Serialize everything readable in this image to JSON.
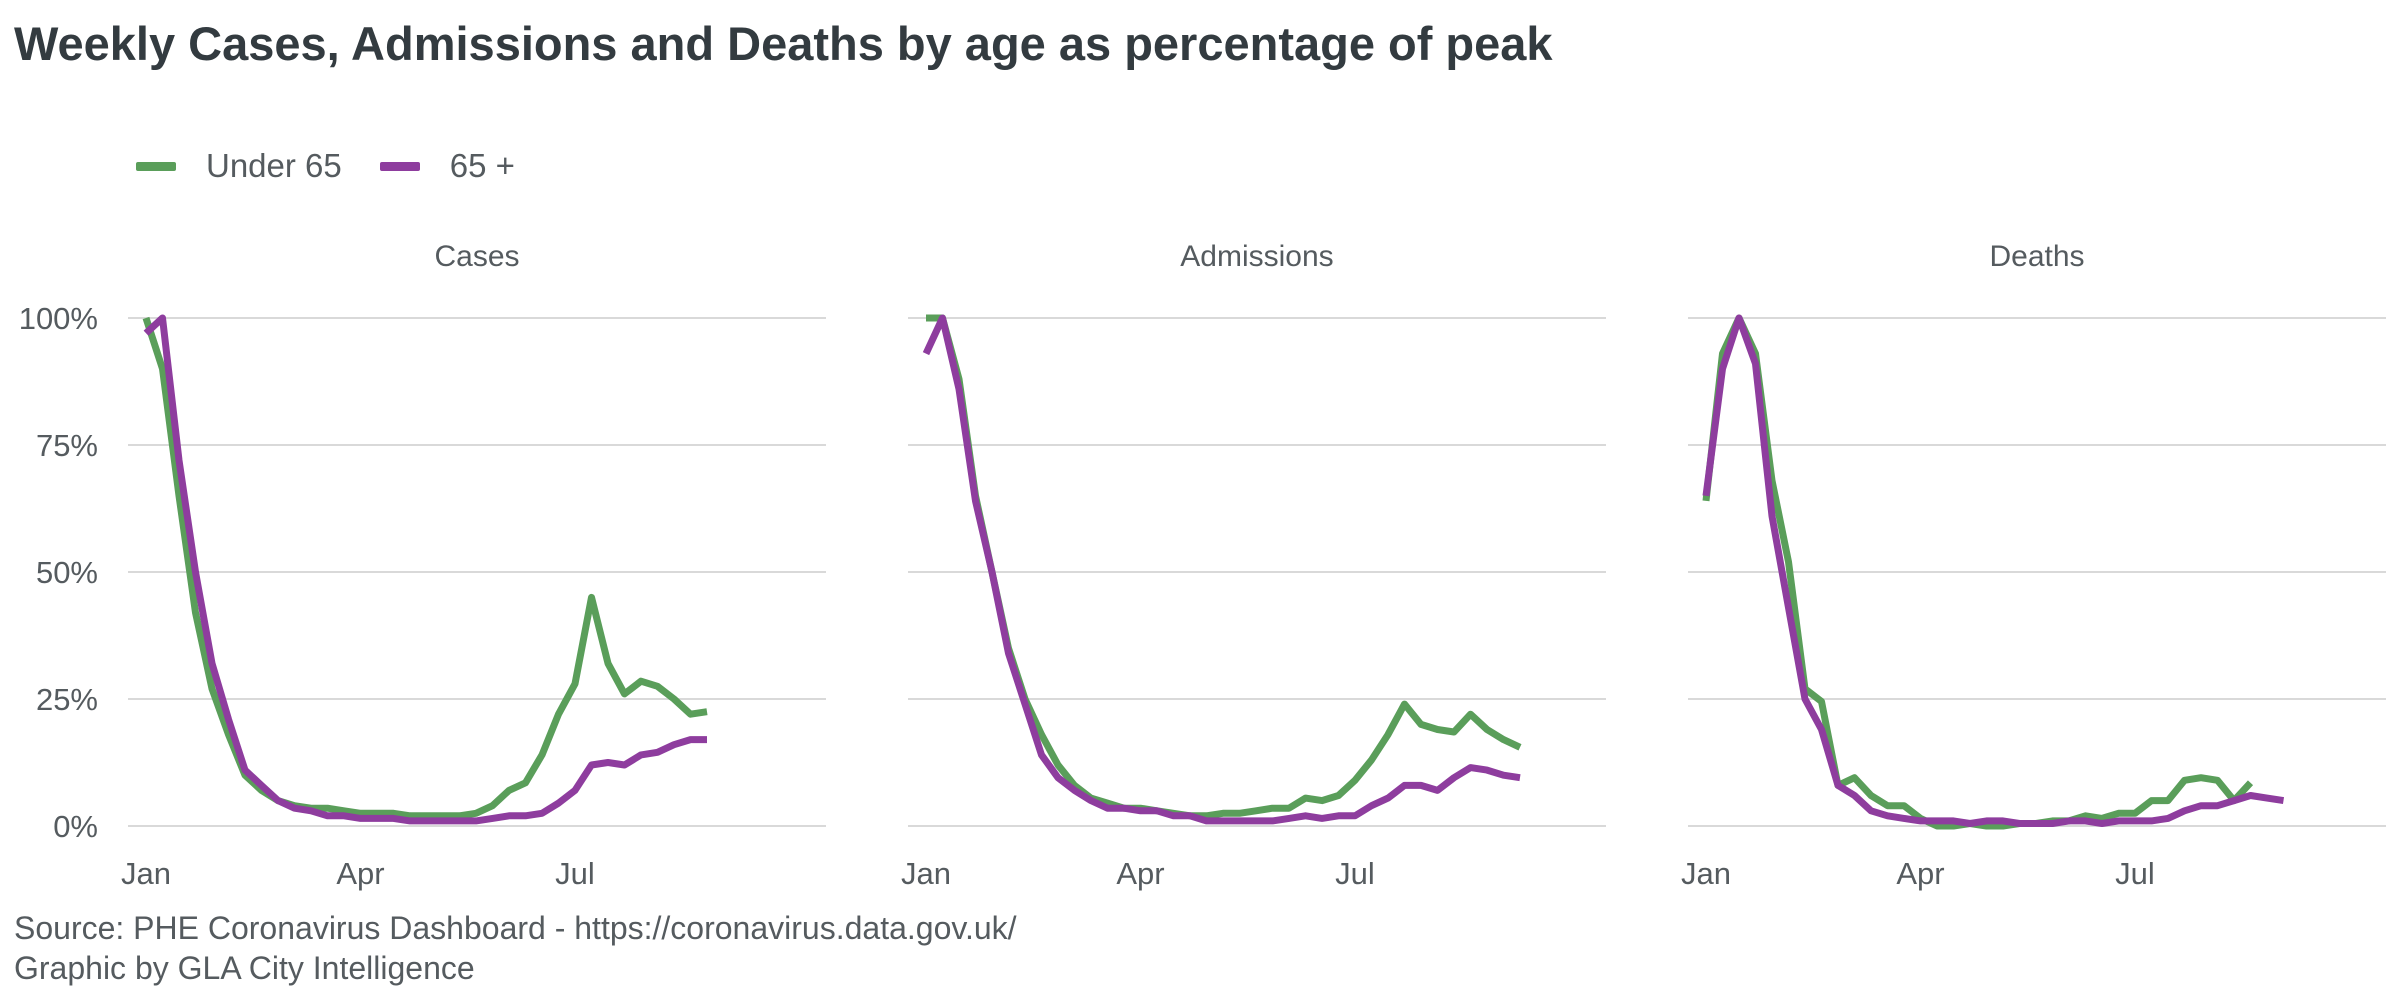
{
  "title": "Weekly Cases, Admissions and Deaths by age as percentage of peak",
  "legend": [
    {
      "name": "Under 65",
      "color": "#5a9e5a"
    },
    {
      "name": "65 +",
      "color": "#8e3d9e"
    }
  ],
  "source": {
    "line1": "Source: PHE Coronavirus Dashboard - https://coronavirus.data.gov.uk/",
    "line2": "Graphic by GLA City Intelligence"
  },
  "chart_data": [
    {
      "type": "line",
      "panel": "Cases",
      "x_ticks": [
        "Jan",
        "Apr",
        "Jul"
      ],
      "y_ticks": [
        "0%",
        "25%",
        "50%",
        "75%",
        "100%"
      ],
      "ylim": [
        0,
        100
      ],
      "x_unit": "week",
      "x": [
        0,
        1,
        2,
        3,
        4,
        5,
        6,
        7,
        8,
        9,
        10,
        11,
        12,
        13,
        14,
        15,
        16,
        17,
        18,
        19,
        20,
        21,
        22,
        23,
        24,
        25,
        26,
        27,
        28,
        29,
        30,
        31,
        32,
        33,
        34,
        35,
        36,
        37,
        38,
        39
      ],
      "series": [
        {
          "name": "Under 65",
          "color": "#5a9e5a",
          "values": [
            100,
            90,
            65,
            42,
            27,
            18,
            10,
            7,
            5,
            4,
            3.5,
            3.5,
            3,
            2.5,
            2.5,
            2.5,
            2,
            2,
            2,
            2,
            2.5,
            4,
            7,
            8.5,
            14,
            22,
            28,
            45,
            32,
            26,
            28.5,
            27.5,
            25,
            22,
            22.5,
            null,
            null,
            null,
            null,
            null
          ]
        },
        {
          "name": "65 +",
          "color": "#8e3d9e",
          "values": [
            97,
            100,
            72,
            50,
            32,
            21,
            11,
            8,
            5,
            3.5,
            3,
            2,
            2,
            1.5,
            1.5,
            1.5,
            1,
            1,
            1,
            1,
            1,
            1.5,
            2,
            2,
            2.5,
            4.5,
            7,
            12,
            12.5,
            12,
            14,
            14.5,
            16,
            17,
            17,
            null,
            null,
            null,
            null,
            null
          ]
        }
      ]
    },
    {
      "type": "line",
      "panel": "Admissions",
      "x_ticks": [
        "Jan",
        "Apr",
        "Jul"
      ],
      "ylim": [
        0,
        100
      ],
      "x_unit": "week",
      "x": [
        0,
        1,
        2,
        3,
        4,
        5,
        6,
        7,
        8,
        9,
        10,
        11,
        12,
        13,
        14,
        15,
        16,
        17,
        18,
        19,
        20,
        21,
        22,
        23,
        24,
        25,
        26,
        27,
        28,
        29,
        30,
        31,
        32,
        33,
        34,
        35,
        36,
        37,
        38,
        39
      ],
      "series": [
        {
          "name": "Under 65",
          "color": "#5a9e5a",
          "values": [
            100,
            100,
            88,
            65,
            50,
            35,
            25,
            18,
            12,
            8,
            5.5,
            4.5,
            3.5,
            3.5,
            3,
            2.5,
            2,
            2,
            2.5,
            2.5,
            3,
            3.5,
            3.5,
            5.5,
            5,
            6,
            9,
            13,
            18,
            24,
            20,
            19,
            18.5,
            22,
            19,
            17,
            15.5,
            null,
            null,
            null
          ]
        },
        {
          "name": "65 +",
          "color": "#8e3d9e",
          "values": [
            93,
            100,
            86,
            64,
            50,
            34,
            24,
            14,
            9.5,
            7,
            5,
            3.5,
            3.5,
            3,
            3,
            2,
            2,
            1,
            1,
            1,
            1,
            1,
            1.5,
            2,
            1.5,
            2,
            2,
            4,
            5.5,
            8,
            8,
            7,
            9.5,
            11.5,
            11,
            10,
            9.5,
            null,
            null,
            null
          ]
        }
      ]
    },
    {
      "type": "line",
      "panel": "Deaths",
      "x_ticks": [
        "Jan",
        "Apr",
        "Jul"
      ],
      "ylim": [
        0,
        100
      ],
      "x_unit": "week",
      "x": [
        0,
        1,
        2,
        3,
        4,
        5,
        6,
        7,
        8,
        9,
        10,
        11,
        12,
        13,
        14,
        15,
        16,
        17,
        18,
        19,
        20,
        21,
        22,
        23,
        24,
        25,
        26,
        27,
        28,
        29,
        30,
        31,
        32,
        33,
        34,
        35,
        36,
        37,
        38,
        39
      ],
      "series": [
        {
          "name": "Under 65",
          "color": "#5a9e5a",
          "values": [
            64,
            93,
            100,
            93,
            68,
            52,
            27,
            24.5,
            8,
            9.5,
            6,
            4,
            4,
            1.5,
            0,
            0,
            0.5,
            0,
            0,
            0.5,
            0.5,
            1,
            1,
            2,
            1.5,
            2.5,
            2.5,
            5,
            5,
            9,
            9.5,
            9,
            5,
            8.5,
            null,
            null,
            null,
            null,
            null,
            null
          ]
        },
        {
          "name": "65 +",
          "color": "#8e3d9e",
          "values": [
            65,
            90,
            100,
            91,
            61,
            43,
            25,
            19,
            8,
            6,
            3,
            2,
            1.5,
            1,
            1,
            1,
            0.5,
            1,
            1,
            0.5,
            0.5,
            0.5,
            1,
            1,
            0.5,
            1,
            1,
            1,
            1.5,
            3,
            4,
            4,
            5,
            6,
            5.5,
            5,
            null,
            null,
            null,
            null
          ]
        }
      ]
    }
  ]
}
